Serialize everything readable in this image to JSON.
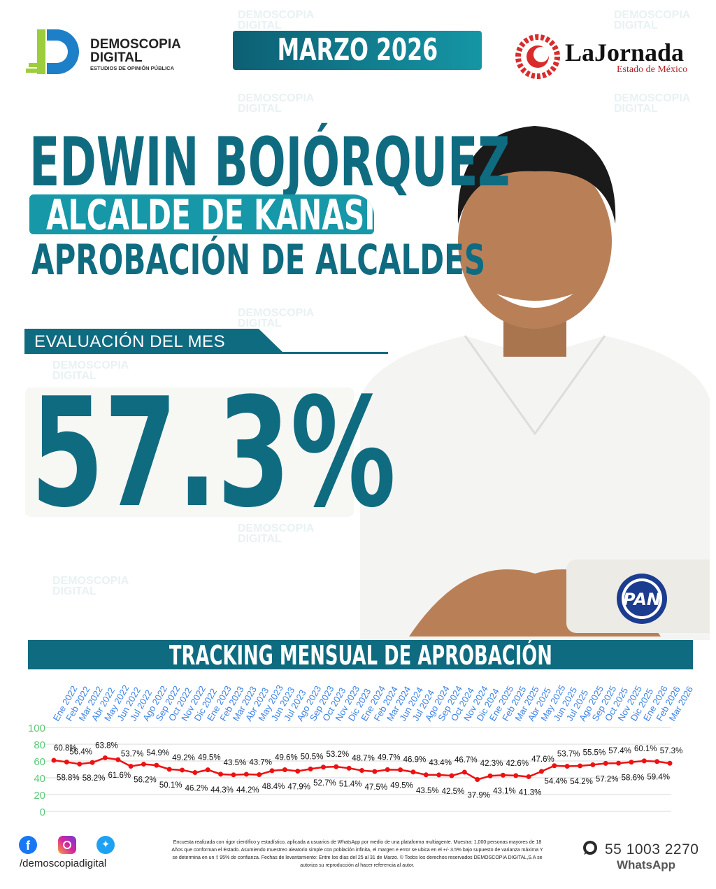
{
  "brand": {
    "name_line1": "DEMOSCOPIA",
    "name_line2": "DIGITAL",
    "tagline": "ESTUDIOS DE OPINIÓN PÚBLICA",
    "colors": {
      "teal_dark": "#0f6b80",
      "teal_light": "#1698a8",
      "line": "#ee1111",
      "axis_labels": "#3b82e6",
      "y_ticks": "#5cc97a"
    }
  },
  "month_badge": "MARZO 2026",
  "partner": {
    "name": "LaJornada",
    "subtitle": "Estado de México"
  },
  "header": {
    "name": "EDWIN BOJÓRQUEZ",
    "role": "ALCALDE DE KANASÍN",
    "subtitle": "APROBACIÓN DE ALCALDES"
  },
  "evaluation": {
    "label": "EVALUACIÓN DEL MES",
    "value": "57.3%"
  },
  "party": {
    "logo_text": "PAN",
    "icon": "pan-party-logo"
  },
  "tracking_title": "TRACKING MENSUAL DE APROBACIÓN",
  "chart_data": {
    "type": "line",
    "title": "TRACKING MENSUAL DE APROBACIÓN",
    "categories": [
      "Ene 2022",
      "Feb 2022",
      "Mar 2022",
      "Abr 2022",
      "May 2022",
      "Jun 2022",
      "Jul 2022",
      "Ago 2022",
      "Sep 2022",
      "Oct 2022",
      "Nov 2022",
      "Dic 2022",
      "Ene 2023",
      "Feb 2023",
      "Mar 2023",
      "Abr 2023",
      "May 2023",
      "Jun 2023",
      "Jul 2023",
      "Ago 2023",
      "Sep 2023",
      "Oct 2023",
      "Nov 2023",
      "Dic 2023",
      "Ene 2024",
      "Feb 2024",
      "Mar 2024",
      "Jun 2024",
      "Jul 2024",
      "Ago 2024",
      "Sep 2024",
      "Oct 2024",
      "Nov 2024",
      "Dic 2024",
      "Ene 2025",
      "Feb 2025",
      "Mar 2025",
      "Abr 2025",
      "May 2025",
      "Jun 2025",
      "Jul 2025",
      "Ago 2025",
      "Sep 2025",
      "Oct 2025",
      "Nov 2025",
      "Dic 2025",
      "Ene 2026",
      "Feb 2026",
      "Mar 2026"
    ],
    "values": [
      60.8,
      58.8,
      56.4,
      58.2,
      63.8,
      61.6,
      53.7,
      56.2,
      54.9,
      50.1,
      49.2,
      46.2,
      49.5,
      44.3,
      43.5,
      44.2,
      43.7,
      48.4,
      49.6,
      47.9,
      50.5,
      52.7,
      53.2,
      51.4,
      48.7,
      47.5,
      49.7,
      49.5,
      46.9,
      43.5,
      43.4,
      42.5,
      46.7,
      37.9,
      42.3,
      43.1,
      42.6,
      41.3,
      47.6,
      54.4,
      53.7,
      54.2,
      55.5,
      57.2,
      57.4,
      58.6,
      60.1,
      59.4,
      57.3
    ],
    "ylim": [
      0,
      100
    ],
    "yticks": [
      0,
      20,
      40,
      60,
      80,
      100
    ],
    "grid": true,
    "legend": "none",
    "xlabel": "",
    "ylabel": ""
  },
  "footer": {
    "social_icons": [
      "facebook-icon",
      "instagram-icon",
      "twitter-icon"
    ],
    "handle": "/demoscopiadigital",
    "disclaimer": "Encuesta realizada con rigor científico y estadístico, aplicada a usuarios de WhatsApp por medio de una plataforma multiagente. Muestra: 1,000 personas mayores de 18 Años que conforman el Estado. Asumiendo muestreo aleatorio simple con población infinita, el margen e error se ubica en el +/- 3.5% bajo supuesto de varianza máxima Y se determina en un ‡ 95% de confianza. Fechas de levantamiento: Entre los días del 25 al 31 de Marzo. © Todos los derechos reservados DEMOSCOPIA DIGITAL,S.A se autoriza su reproducción al hacer referencia al autor.",
    "phone": "55 1003 2270",
    "whatsapp_label": "WhatsApp"
  }
}
